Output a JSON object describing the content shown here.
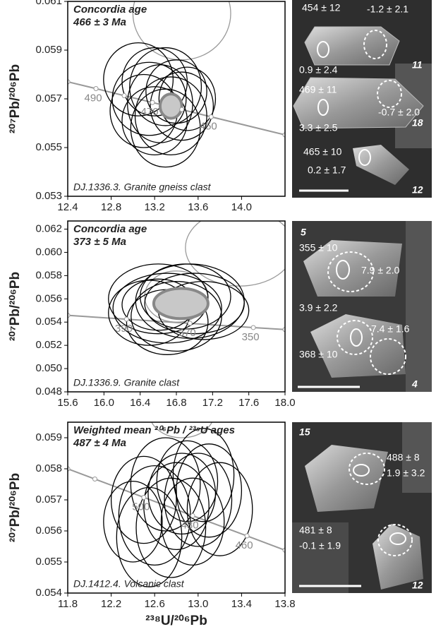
{
  "chart_data": [
    {
      "type": "concordia",
      "title": "Concordia age",
      "subtitle": "466 ± 3 Ma",
      "note": "DJ.1336.3.   Granite gneiss clast",
      "ylabel": "²⁰⁷Pb/²⁰⁶Pb",
      "xlim": [
        12.4,
        14.4
      ],
      "ylim": [
        0.053,
        0.061
      ],
      "xticks": [
        12.4,
        12.8,
        13.2,
        13.6,
        {
          "value": 14,
          "label": "14.0"
        }
      ],
      "yticks": [
        0.053,
        0.055,
        0.057,
        0.059,
        0.061
      ],
      "concordia": {
        "color": "#999",
        "x": [
          12.4,
          12.66,
          12.92,
          13.18,
          13.45,
          13.72,
          14.4
        ],
        "y": [
          0.0577,
          0.05742,
          0.05713,
          0.05685,
          0.05656,
          0.05626,
          0.05552
        ],
        "labels": [
          null,
          490,
          null,
          470,
          null,
          450,
          null
        ]
      },
      "ellipse_sets": [
        {
          "color": "#999",
          "fill": "none",
          "x": [
            13.45
          ],
          "y": [
            0.0605
          ],
          "sx": [
            0.45
          ],
          "sy": [
            0.0019
          ]
        },
        {
          "color": "#000",
          "fill": "none",
          "x": [
            13.05,
            13.2,
            13.3,
            13.4,
            13.15,
            13.25,
            13.45,
            13.1,
            13.35,
            13.2,
            13.5,
            13.3
          ],
          "y": [
            0.0578,
            0.0577,
            0.0575,
            0.0573,
            0.057,
            0.0568,
            0.0567,
            0.0565,
            0.0563,
            0.0561,
            0.057,
            0.0558
          ],
          "sx": [
            0.32,
            0.3,
            0.33,
            0.28,
            0.34,
            0.3,
            0.29,
            0.31,
            0.33,
            0.3,
            0.26,
            0.32
          ],
          "sy": [
            0.0015,
            0.0014,
            0.0016,
            0.0013,
            0.0015,
            0.0016,
            0.0014,
            0.0015,
            0.0016,
            0.0014,
            0.0013,
            0.0016
          ]
        },
        {
          "color": "#888",
          "fill": "#c8c8c8",
          "x": [
            13.35
          ],
          "y": [
            0.0567
          ],
          "sx": [
            0.1
          ],
          "sy": [
            0.0005
          ]
        }
      ]
    },
    {
      "type": "concordia",
      "title": "Concordia age",
      "subtitle": "373 ± 5 Ma",
      "note": "DJ.1336.9.   Granite clast",
      "ylabel": "²⁰⁷Pb/²⁰⁶Pb",
      "xlim": [
        15.6,
        18
      ],
      "ylim": [
        0.048,
        0.0627
      ],
      "xticks": [
        15.6,
        {
          "value": 16,
          "label": "16.0"
        },
        16.4,
        16.8,
        17.2,
        17.6,
        {
          "value": 18,
          "label": "18.0"
        }
      ],
      "yticks": [
        0.048,
        {
          "value": 0.05,
          "label": "0.050"
        },
        0.052,
        0.054,
        0.056,
        0.058,
        {
          "value": 0.06,
          "label": "0.060"
        },
        0.062
      ],
      "concordia": {
        "color": "#999",
        "x": [
          15.6,
          16.25,
          16.95,
          17.65,
          18
        ],
        "y": [
          0.05458,
          0.05425,
          0.05389,
          0.05353,
          0.05336
        ],
        "labels": [
          null,
          390,
          370,
          350,
          null
        ]
      },
      "ellipse_sets": [
        {
          "color": "#999",
          "fill": "none",
          "x": [
            17.5,
            16.8
          ],
          "y": [
            0.0604,
            0.0562
          ],
          "sx": [
            0.6,
            0.35
          ],
          "sy": [
            0.0033,
            0.0022
          ]
        },
        {
          "color": "#000",
          "fill": "none",
          "x": [
            16.6,
            16.9,
            16.7,
            17,
            16.5,
            16.8,
            17.1,
            16.7,
            16.95,
            16.6
          ],
          "y": [
            0.056,
            0.0562,
            0.0552,
            0.0556,
            0.0548,
            0.0545,
            0.055,
            0.054,
            0.0558,
            0.0555
          ],
          "sx": [
            0.55,
            0.5,
            0.6,
            0.55,
            0.45,
            0.5,
            0.5,
            0.45,
            0.6,
            0.4
          ],
          "sy": [
            0.003,
            0.0028,
            0.003,
            0.0026,
            0.0028,
            0.003,
            0.0025,
            0.0028,
            0.0032,
            0.0022
          ]
        },
        {
          "color": "#888",
          "fill": "#c8c8c8",
          "x": [
            16.85
          ],
          "y": [
            0.0556
          ],
          "sx": [
            0.3
          ],
          "sy": [
            0.0013
          ]
        }
      ]
    },
    {
      "type": "concordia",
      "title": "Weighted mean ²⁰⁶Pb / ²³⁸U ages",
      "subtitle": "487 ± 4 Ma",
      "note": "DJ.1412.4.   Volcanic clast",
      "ylabel": "²⁰⁷Pb/²⁰⁶Pb",
      "xlabel": "²³⁸U/²⁰⁶Pb",
      "xlim": [
        11.8,
        13.8
      ],
      "ylim": [
        0.054,
        0.0595
      ],
      "xticks": [
        11.8,
        12.2,
        12.6,
        {
          "value": 13,
          "label": "13.0"
        },
        13.4,
        13.8
      ],
      "yticks": [
        0.054,
        0.055,
        0.056,
        0.057,
        0.058,
        0.059
      ],
      "concordia": {
        "color": "#999",
        "x": [
          11.8,
          12.05,
          12.5,
          12.95,
          13.45,
          13.8
        ],
        "y": [
          0.058,
          0.05767,
          0.05708,
          0.05649,
          0.05584,
          0.05538
        ],
        "labels": [
          null,
          null,
          500,
          480,
          460,
          null
        ]
      },
      "ellipse_sets": [
        {
          "color": "#999",
          "fill": "none",
          "x": [
            12.85
          ],
          "y": [
            0.0598
          ],
          "sx": [
            0.3
          ],
          "sy": [
            0.0008
          ]
        },
        {
          "color": "#000",
          "fill": "none",
          "x": [
            12.5,
            12.7,
            12.9,
            13.1,
            12.6,
            12.8,
            13,
            12.4,
            12.75,
            13.2,
            12.95,
            12.55,
            12.85,
            13.05
          ],
          "y": [
            0.057,
            0.0575,
            0.0576,
            0.0573,
            0.0565,
            0.0568,
            0.057,
            0.0563,
            0.0561,
            0.0567,
            0.0563,
            0.0558,
            0.0572,
            0.0578
          ],
          "sx": [
            0.3,
            0.32,
            0.28,
            0.3,
            0.33,
            0.3,
            0.31,
            0.27,
            0.32,
            0.3,
            0.29,
            0.3,
            0.31,
            0.28
          ],
          "sy": [
            0.0014,
            0.0015,
            0.0013,
            0.0015,
            0.0016,
            0.0014,
            0.0015,
            0.0013,
            0.0016,
            0.0015,
            0.0014,
            0.0016,
            0.0013,
            0.0015
          ]
        }
      ]
    }
  ],
  "cl_images": [
    {
      "labels": [
        "454 ± 12",
        "-1.2 ± 2.1",
        "0.9 ± 2.4",
        "11",
        "469 ± 11",
        "-0.7 ± 2.0",
        "3.3 ± 2.5",
        "18",
        "465 ± 10",
        "0.2 ± 1.7",
        "12"
      ]
    },
    {
      "labels": [
        "5",
        "355 ± 10",
        "7.9 ± 2.0",
        "3.9 ± 2.2",
        "7.4 ± 1.6",
        "368 ± 10",
        "4"
      ]
    },
    {
      "labels": [
        "15",
        "488 ± 8",
        "1.9 ± 3.2",
        "481 ± 8",
        "-0.1 ± 1.9",
        "12"
      ]
    }
  ]
}
